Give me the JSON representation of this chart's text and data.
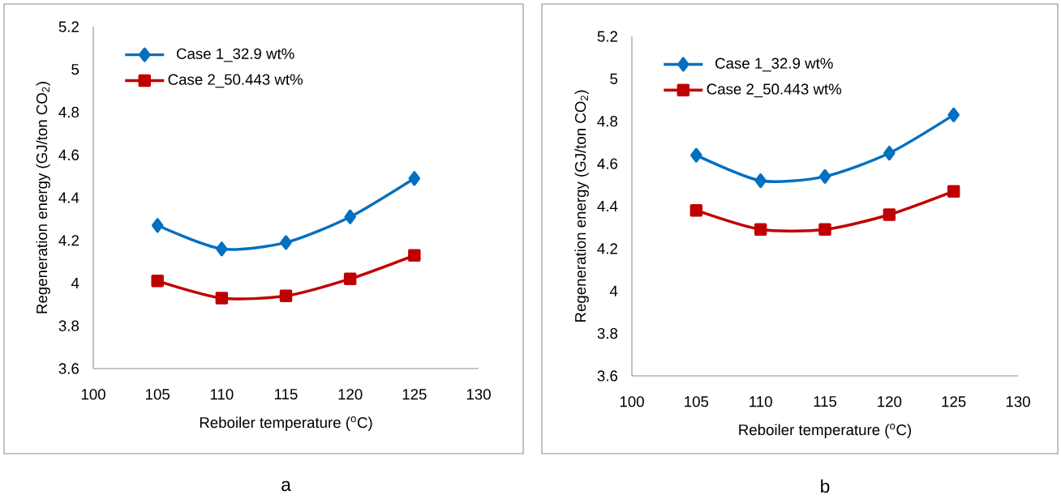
{
  "chart_data": [
    {
      "type": "line",
      "xlabel": "Reboiler temperature ($^{o}$C)",
      "ylabel": "Regeneration energy (GJ/ton CO$_{2}$)",
      "x": [
        105,
        110,
        115,
        120,
        125
      ],
      "series": [
        {
          "name": "Case 1_32.9 wt%",
          "color": "#0070c0",
          "marker": "diamond",
          "values": [
            4.27,
            4.16,
            4.19,
            4.31,
            4.49
          ]
        },
        {
          "name": "Case 2_50.443 wt%",
          "color": "#c00000",
          "marker": "square",
          "values": [
            4.01,
            3.93,
            3.94,
            4.02,
            4.13
          ]
        }
      ],
      "xlim": [
        100,
        130
      ],
      "xticks": [
        100,
        105,
        110,
        115,
        120,
        125,
        130
      ],
      "ylim": [
        3.6,
        5.2
      ],
      "yticks": [
        3.6,
        3.8,
        4,
        4.2,
        4.4,
        4.6,
        4.8,
        5,
        5.2
      ],
      "line_style": "solid",
      "grid": false,
      "legend": "top left",
      "annotations": [
        "a"
      ]
    },
    {
      "type": "line",
      "xlabel": "Reboiler temperature ($^{o}$C)",
      "ylabel": "Regeneration energy (GJ/ton CO$_{2}$)",
      "x": [
        105,
        110,
        115,
        120,
        125
      ],
      "series": [
        {
          "name": "Case 1_32.9 wt%",
          "color": "#0070c0",
          "marker": "diamond",
          "values": [
            4.64,
            4.52,
            4.54,
            4.65,
            4.83
          ]
        },
        {
          "name": "Case 2_50.443 wt%",
          "color": "#c00000",
          "marker": "square",
          "values": [
            4.38,
            4.29,
            4.29,
            4.36,
            4.47
          ]
        }
      ],
      "xlim": [
        100,
        130
      ],
      "xticks": [
        100,
        105,
        110,
        115,
        120,
        125,
        130
      ],
      "ylim": [
        3.6,
        5.2
      ],
      "yticks": [
        3.6,
        3.8,
        4,
        4.2,
        4.4,
        4.6,
        4.8,
        5,
        5.2
      ],
      "line_style": "solid",
      "grid": false,
      "legend": "top left",
      "annotations": [
        "b"
      ]
    }
  ]
}
